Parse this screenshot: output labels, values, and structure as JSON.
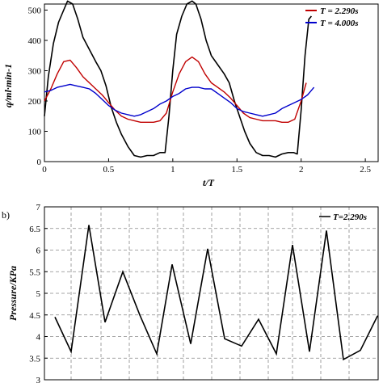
{
  "chart_data": [
    {
      "type": "line",
      "panel_label": "",
      "xlabel": "t/T",
      "ylabel": "q/ml·min-1",
      "xlim": [
        0,
        2.6
      ],
      "ylim": [
        0,
        520
      ],
      "xticks": [
        "0",
        "0.5",
        "1",
        "1.5",
        "2",
        "2.5"
      ],
      "yticks": [
        "0",
        "100",
        "200",
        "300",
        "400",
        "500"
      ],
      "grid": false,
      "legend": "top-right",
      "series": [
        {
          "name": "",
          "color": "#000000",
          "x": [
            0,
            0.03,
            0.07,
            0.11,
            0.15,
            0.18,
            0.22,
            0.26,
            0.3,
            0.35,
            0.4,
            0.44,
            0.48,
            0.52,
            0.56,
            0.6,
            0.65,
            0.7,
            0.75,
            0.8,
            0.85,
            0.9,
            0.94,
            0.97,
            1.0,
            1.03,
            1.07,
            1.11,
            1.15,
            1.18,
            1.22,
            1.26,
            1.3,
            1.35,
            1.4,
            1.44,
            1.48,
            1.52,
            1.56,
            1.6,
            1.65,
            1.7,
            1.75,
            1.8,
            1.85,
            1.9,
            1.94,
            1.97,
            2.0,
            2.03,
            2.06,
            2.08
          ],
          "y": [
            150,
            280,
            390,
            460,
            500,
            530,
            520,
            470,
            410,
            370,
            330,
            300,
            250,
            180,
            130,
            90,
            50,
            20,
            15,
            20,
            20,
            30,
            30,
            150,
            300,
            420,
            480,
            520,
            530,
            520,
            470,
            400,
            350,
            320,
            290,
            260,
            200,
            150,
            100,
            60,
            30,
            20,
            20,
            15,
            25,
            30,
            30,
            25,
            170,
            350,
            470,
            480
          ]
        },
        {
          "name": "T = 2.290s",
          "color": "#c00000",
          "x": [
            0,
            0.05,
            0.1,
            0.15,
            0.2,
            0.25,
            0.3,
            0.35,
            0.4,
            0.45,
            0.5,
            0.55,
            0.6,
            0.65,
            0.7,
            0.75,
            0.8,
            0.85,
            0.9,
            0.95,
            1.0,
            1.05,
            1.1,
            1.15,
            1.2,
            1.25,
            1.3,
            1.35,
            1.4,
            1.45,
            1.5,
            1.55,
            1.6,
            1.65,
            1.7,
            1.75,
            1.8,
            1.85,
            1.9,
            1.95,
            2.0,
            2.04
          ],
          "y": [
            200,
            240,
            290,
            330,
            335,
            310,
            280,
            260,
            240,
            220,
            195,
            170,
            150,
            140,
            135,
            130,
            130,
            130,
            135,
            160,
            230,
            290,
            330,
            345,
            330,
            290,
            260,
            245,
            230,
            210,
            185,
            160,
            145,
            140,
            135,
            135,
            135,
            130,
            130,
            140,
            200,
            260
          ]
        },
        {
          "name": "T = 4.000s",
          "color": "#0000cc",
          "x": [
            0,
            0.05,
            0.1,
            0.15,
            0.2,
            0.25,
            0.3,
            0.35,
            0.4,
            0.45,
            0.5,
            0.55,
            0.6,
            0.65,
            0.7,
            0.75,
            0.8,
            0.85,
            0.9,
            0.95,
            1.0,
            1.05,
            1.1,
            1.15,
            1.2,
            1.25,
            1.3,
            1.35,
            1.4,
            1.45,
            1.5,
            1.55,
            1.6,
            1.65,
            1.7,
            1.75,
            1.8,
            1.85,
            1.9,
            1.95,
            2.0,
            2.05,
            2.1
          ],
          "y": [
            230,
            235,
            245,
            250,
            255,
            250,
            245,
            240,
            225,
            205,
            185,
            170,
            160,
            155,
            150,
            155,
            165,
            175,
            190,
            200,
            215,
            225,
            240,
            245,
            245,
            240,
            240,
            225,
            210,
            195,
            175,
            165,
            160,
            155,
            150,
            155,
            160,
            175,
            185,
            195,
            205,
            220,
            245
          ]
        }
      ]
    },
    {
      "type": "line",
      "panel_label": "b)",
      "xlabel": "",
      "ylabel": "Pressure/KPa",
      "ylim": [
        3,
        7
      ],
      "yticks": [
        "3",
        "3.5",
        "4",
        "4.5",
        "5",
        "5.5",
        "6",
        "6.5",
        "7"
      ],
      "grid": true,
      "legend": "top-right",
      "series": [
        {
          "name": "T=2.290s",
          "color": "#000000",
          "x": [
            1,
            2,
            3,
            4,
            5,
            6,
            7,
            8,
            9,
            10,
            11,
            12,
            13,
            14,
            15,
            16,
            17,
            18,
            19,
            20,
            21,
            22
          ],
          "y": [
            4.45,
            3.65,
            6.58,
            4.33,
            5.5,
            4.5,
            3.6,
            5.67,
            3.83,
            6.03,
            3.95,
            3.78,
            4.4,
            3.6,
            6.12,
            3.65,
            6.45,
            3.47,
            3.68,
            4.47,
            4.6,
            4.5
          ]
        }
      ]
    }
  ]
}
